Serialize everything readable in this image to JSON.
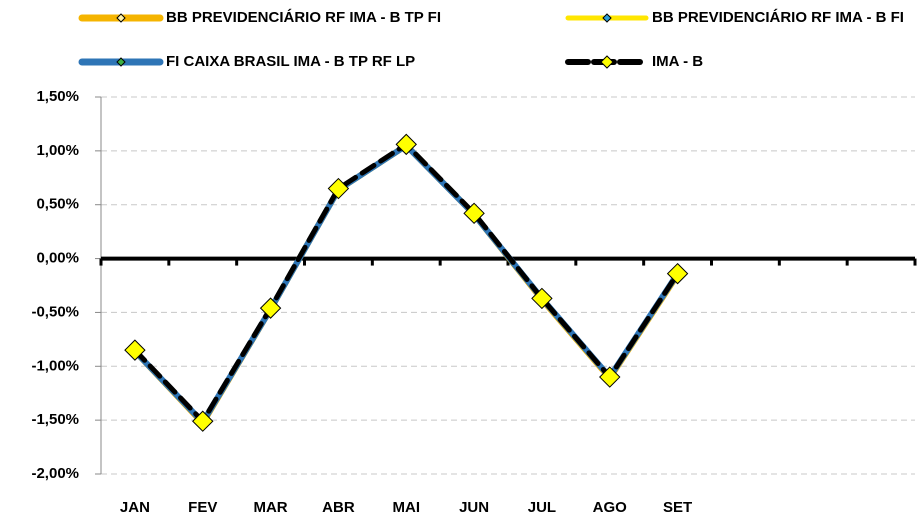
{
  "chart_data": {
    "type": "line",
    "categories": [
      "JAN",
      "FEV",
      "MAR",
      "ABR",
      "MAI",
      "JUN",
      "JUL",
      "AGO",
      "SET",
      null,
      null,
      null
    ],
    "series": [
      {
        "name": "BB PREVIDENCIÁRIO RF IMA - B TP FI",
        "color": "#f5b400",
        "marker_color": "#fff2a8",
        "values": [
          -0.86,
          -1.53,
          -0.47,
          0.64,
          1.05,
          0.41,
          -0.38,
          -1.11,
          -0.15,
          null,
          null,
          null
        ]
      },
      {
        "name": "BB PREVIDENCIÁRIO RF IMA - B FI",
        "color": "#ffe600",
        "marker_color": "#2e9fd8",
        "values": [
          -0.86,
          -1.53,
          -0.48,
          0.63,
          1.04,
          0.41,
          -0.38,
          -1.11,
          -0.15,
          null,
          null,
          null
        ]
      },
      {
        "name": "FI CAIXA BRASIL IMA - B TP RF LP",
        "color": "#2e75b6",
        "marker_color": "#3cb043",
        "values": [
          -0.86,
          -1.52,
          -0.47,
          0.64,
          1.05,
          0.41,
          -0.37,
          -1.1,
          -0.14,
          null,
          null,
          null
        ]
      },
      {
        "name": "IMA - B",
        "color": "#000000",
        "marker_color": "#ffff00",
        "values": [
          -0.85,
          -1.51,
          -0.46,
          0.65,
          1.06,
          0.42,
          -0.37,
          -1.1,
          -0.14,
          null,
          null,
          null
        ]
      }
    ],
    "ylim": [
      -2,
      1.5
    ],
    "yticks": [
      {
        "value": -2,
        "label": "-2,00%"
      },
      {
        "value": -1.5,
        "label": "-1,50%"
      },
      {
        "value": -1,
        "label": "-1,00%"
      },
      {
        "value": -0.5,
        "label": "-0,50%"
      },
      {
        "value": 0,
        "label": "0,00%"
      },
      {
        "value": 0.5,
        "label": "0,50%"
      },
      {
        "value": 1,
        "label": "1,00%"
      },
      {
        "value": 1.5,
        "label": "1,50%"
      }
    ],
    "grid": true
  }
}
